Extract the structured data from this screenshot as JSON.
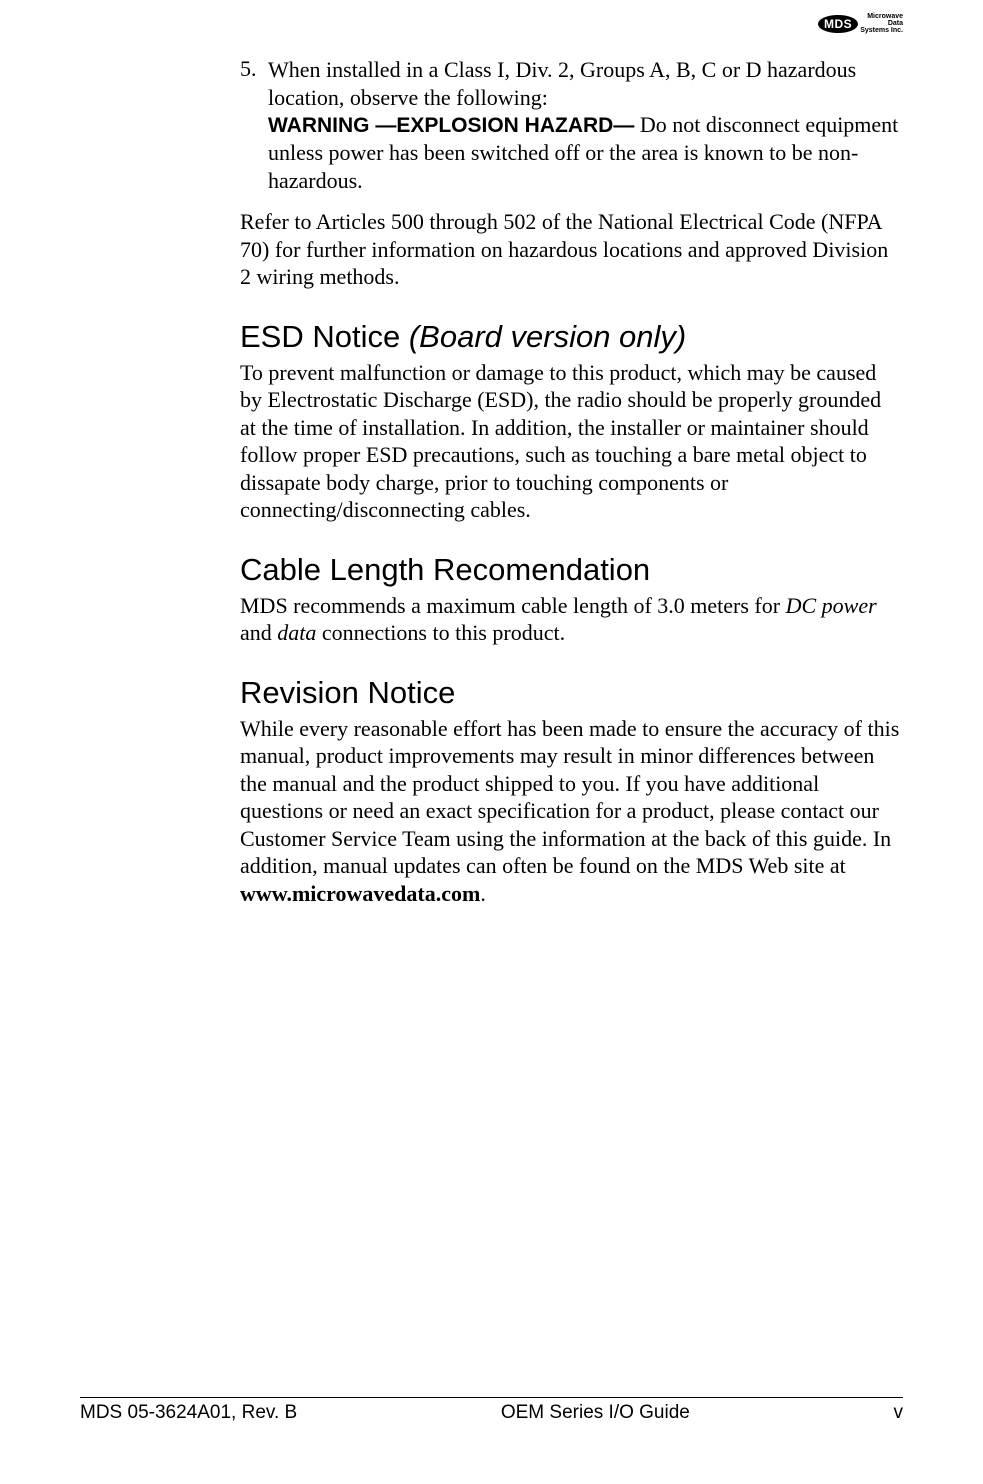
{
  "logo": {
    "mark": "MDS",
    "line1": "Microwave",
    "line2": "Data",
    "line3": "Systems Inc."
  },
  "item5": {
    "number": "5.",
    "text1": "When installed in a Class I, Div. 2, Groups A, B, C or D hazardous location, observe the following:",
    "warning_bold": "WARNING —EXPLOSION HAZARD—",
    "warning_rest": " Do not disconnect equipment unless power has been switched off or the area is known to be non-hazardous."
  },
  "refer_para": "Refer to Articles 500 through 502 of the National Electrical Code (NFPA 70) for further information on hazardous locations and approved Division 2 wiring methods.",
  "esd": {
    "heading_plain": "ESD Notice ",
    "heading_italic": "(Board version only)",
    "body": "To prevent malfunction or damage to this product, which may be caused by Electrostatic Discharge (ESD), the radio should be properly grounded at the time of installation. In addition, the installer or maintainer should follow proper ESD precautions, such as touching a bare metal object to dissapate body charge, prior to touching components or connecting/disconnecting cables."
  },
  "cable": {
    "heading": "Cable Length Recomendation",
    "body_pre": "MDS recommends a maximum cable length of 3.0 meters for ",
    "body_italic1": "DC power",
    "body_mid": " and ",
    "body_italic2": "data",
    "body_post": " connections to this product."
  },
  "revision": {
    "heading": "Revision Notice",
    "body_pre": "While every reasonable effort has been made to ensure the accuracy of this manual, product improvements may result in minor differences between the manual and the product shipped to you. If you have additional questions or need an exact specification for a product, please contact our Customer Service Team using the information at the back of this guide. In addition, manual updates can often be found on the MDS Web site at ",
    "body_bold": "www.microwavedata.com",
    "body_post": "."
  },
  "footer": {
    "left": "MDS 05-3624A01, Rev. B",
    "center": "OEM Series I/O Guide",
    "right": "v"
  }
}
